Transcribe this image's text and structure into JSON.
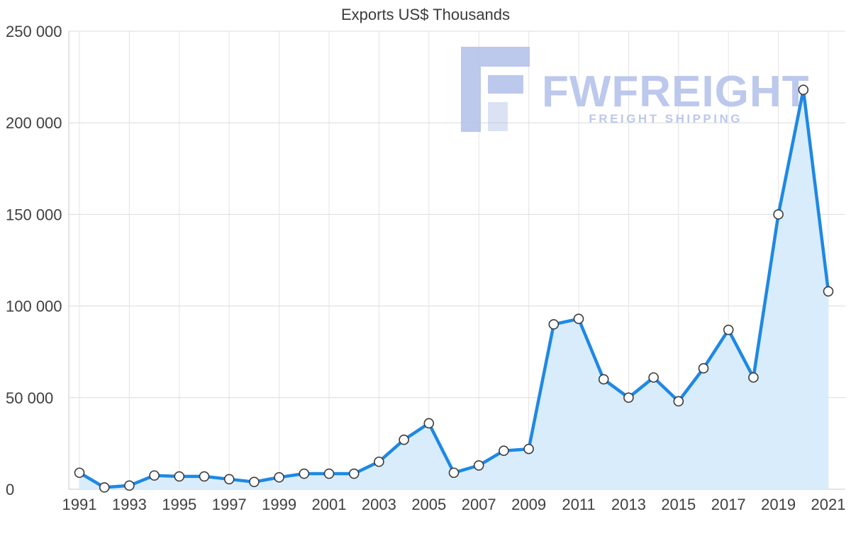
{
  "chart_data": {
    "type": "area",
    "title": "Exports US$ Thousands",
    "series_name": "Exports US$ Thousands",
    "x": [
      1991,
      1992,
      1993,
      1994,
      1995,
      1996,
      1997,
      1998,
      1999,
      2000,
      2001,
      2002,
      2003,
      2004,
      2005,
      2006,
      2007,
      2008,
      2009,
      2010,
      2011,
      2012,
      2013,
      2014,
      2015,
      2016,
      2017,
      2018,
      2019,
      2020,
      2021
    ],
    "values": [
      9000,
      1000,
      2000,
      7500,
      7000,
      7000,
      5500,
      4000,
      6500,
      8500,
      8500,
      8500,
      15000,
      27000,
      36000,
      9000,
      13000,
      21000,
      22000,
      90000,
      93000,
      60000,
      50000,
      61000,
      48000,
      66000,
      87000,
      61000,
      150000,
      218000,
      108000
    ],
    "ylim": [
      0,
      250000
    ],
    "y_ticks": [
      0,
      50000,
      100000,
      150000,
      200000,
      250000
    ],
    "y_tick_labels": [
      "0",
      "50 000",
      "100 000",
      "150 000",
      "200 000",
      "250 000"
    ],
    "x_tick_labels": [
      "1991",
      "1993",
      "1995",
      "1997",
      "1999",
      "2001",
      "2003",
      "2005",
      "2007",
      "2009",
      "2011",
      "2013",
      "2015",
      "2017",
      "2019",
      "2021"
    ],
    "grid": true,
    "legend": "none",
    "colors": {
      "line": "#1e88e5",
      "area": "#d9ecfb",
      "marker_fill": "#fdfdfd",
      "marker_stroke": "#3c3c3c",
      "grid": "#dcdcdc",
      "vgrid": "#e4e4e4",
      "axis": "#c9c9c9",
      "text": "#404040"
    }
  },
  "watermark": {
    "brand": "FWFREIGHT",
    "tagline": "FREIGHT SHIPPING",
    "color": "#b5c3ea"
  }
}
